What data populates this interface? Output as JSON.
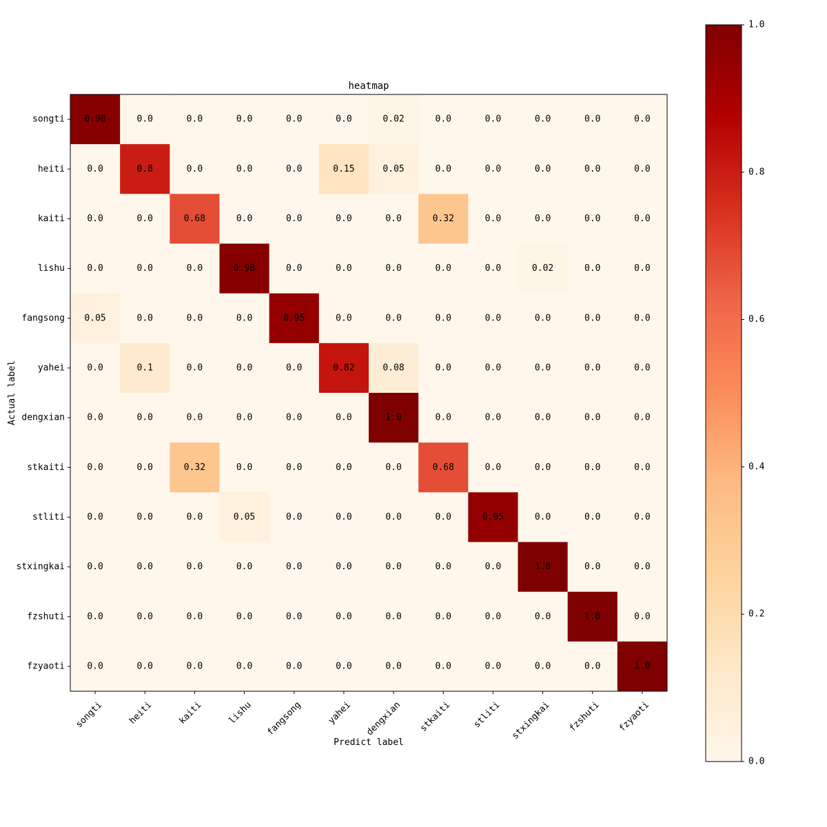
{
  "chart_data": {
    "type": "heatmap",
    "title": "heatmap",
    "xlabel": "Predict label",
    "ylabel": "Actual label",
    "x_categories": [
      "songti",
      "heiti",
      "kaiti",
      "lishu",
      "fangsong",
      "yahei",
      "dengxian",
      "stkaiti",
      "stliti",
      "stxingkai",
      "fzshuti",
      "fzyaoti"
    ],
    "y_categories": [
      "songti",
      "heiti",
      "kaiti",
      "lishu",
      "fangsong",
      "yahei",
      "dengxian",
      "stkaiti",
      "stliti",
      "stxingkai",
      "fzshuti",
      "fzyaoti"
    ],
    "values": [
      [
        0.98,
        0.0,
        0.0,
        0.0,
        0.0,
        0.0,
        0.02,
        0.0,
        0.0,
        0.0,
        0.0,
        0.0
      ],
      [
        0.0,
        0.8,
        0.0,
        0.0,
        0.0,
        0.15,
        0.05,
        0.0,
        0.0,
        0.0,
        0.0,
        0.0
      ],
      [
        0.0,
        0.0,
        0.68,
        0.0,
        0.0,
        0.0,
        0.0,
        0.32,
        0.0,
        0.0,
        0.0,
        0.0
      ],
      [
        0.0,
        0.0,
        0.0,
        0.98,
        0.0,
        0.0,
        0.0,
        0.0,
        0.0,
        0.02,
        0.0,
        0.0
      ],
      [
        0.05,
        0.0,
        0.0,
        0.0,
        0.95,
        0.0,
        0.0,
        0.0,
        0.0,
        0.0,
        0.0,
        0.0
      ],
      [
        0.0,
        0.1,
        0.0,
        0.0,
        0.0,
        0.82,
        0.08,
        0.0,
        0.0,
        0.0,
        0.0,
        0.0
      ],
      [
        0.0,
        0.0,
        0.0,
        0.0,
        0.0,
        0.0,
        1.0,
        0.0,
        0.0,
        0.0,
        0.0,
        0.0
      ],
      [
        0.0,
        0.0,
        0.32,
        0.0,
        0.0,
        0.0,
        0.0,
        0.68,
        0.0,
        0.0,
        0.0,
        0.0
      ],
      [
        0.0,
        0.0,
        0.0,
        0.05,
        0.0,
        0.0,
        0.0,
        0.0,
        0.95,
        0.0,
        0.0,
        0.0
      ],
      [
        0.0,
        0.0,
        0.0,
        0.0,
        0.0,
        0.0,
        0.0,
        0.0,
        0.0,
        1.0,
        0.0,
        0.0
      ],
      [
        0.0,
        0.0,
        0.0,
        0.0,
        0.0,
        0.0,
        0.0,
        0.0,
        0.0,
        0.0,
        1.0,
        0.0
      ],
      [
        0.0,
        0.0,
        0.0,
        0.0,
        0.0,
        0.0,
        0.0,
        0.0,
        0.0,
        0.0,
        0.0,
        1.0
      ]
    ],
    "cell_labels": [
      [
        "0.98",
        "0.0",
        "0.0",
        "0.0",
        "0.0",
        "0.0",
        "0.02",
        "0.0",
        "0.0",
        "0.0",
        "0.0",
        "0.0"
      ],
      [
        "0.0",
        "0.8",
        "0.0",
        "0.0",
        "0.0",
        "0.15",
        "0.05",
        "0.0",
        "0.0",
        "0.0",
        "0.0",
        "0.0"
      ],
      [
        "0.0",
        "0.0",
        "0.68",
        "0.0",
        "0.0",
        "0.0",
        "0.0",
        "0.32",
        "0.0",
        "0.0",
        "0.0",
        "0.0"
      ],
      [
        "0.0",
        "0.0",
        "0.0",
        "0.98",
        "0.0",
        "0.0",
        "0.0",
        "0.0",
        "0.0",
        "0.02",
        "0.0",
        "0.0"
      ],
      [
        "0.05",
        "0.0",
        "0.0",
        "0.0",
        "0.95",
        "0.0",
        "0.0",
        "0.0",
        "0.0",
        "0.0",
        "0.0",
        "0.0"
      ],
      [
        "0.0",
        "0.1",
        "0.0",
        "0.0",
        "0.0",
        "0.82",
        "0.08",
        "0.0",
        "0.0",
        "0.0",
        "0.0",
        "0.0"
      ],
      [
        "0.0",
        "0.0",
        "0.0",
        "0.0",
        "0.0",
        "0.0",
        "1.0",
        "0.0",
        "0.0",
        "0.0",
        "0.0",
        "0.0"
      ],
      [
        "0.0",
        "0.0",
        "0.32",
        "0.0",
        "0.0",
        "0.0",
        "0.0",
        "0.68",
        "0.0",
        "0.0",
        "0.0",
        "0.0"
      ],
      [
        "0.0",
        "0.0",
        "0.0",
        "0.05",
        "0.0",
        "0.0",
        "0.0",
        "0.0",
        "0.95",
        "0.0",
        "0.0",
        "0.0"
      ],
      [
        "0.0",
        "0.0",
        "0.0",
        "0.0",
        "0.0",
        "0.0",
        "0.0",
        "0.0",
        "0.0",
        "1.0",
        "0.0",
        "0.0"
      ],
      [
        "0.0",
        "0.0",
        "0.0",
        "0.0",
        "0.0",
        "0.0",
        "0.0",
        "0.0",
        "0.0",
        "0.0",
        "1.0",
        "0.0"
      ],
      [
        "0.0",
        "0.0",
        "0.0",
        "0.0",
        "0.0",
        "0.0",
        "0.0",
        "0.0",
        "0.0",
        "0.0",
        "0.0",
        "1.0"
      ]
    ],
    "colorbar": {
      "range": [
        0.0,
        1.0
      ],
      "ticks": [
        0.0,
        0.2,
        0.4,
        0.6,
        0.8,
        1.0
      ],
      "tick_labels": [
        "0.0",
        "0.2",
        "0.4",
        "0.6",
        "0.8",
        "1.0"
      ],
      "colormap": "OrRd",
      "colormap_stops": [
        "#fff7ec",
        "#fee8c8",
        "#fdd49e",
        "#fdbb84",
        "#fc8d59",
        "#ef6548",
        "#d7301f",
        "#b30000",
        "#7f0000"
      ]
    },
    "grid": false
  }
}
